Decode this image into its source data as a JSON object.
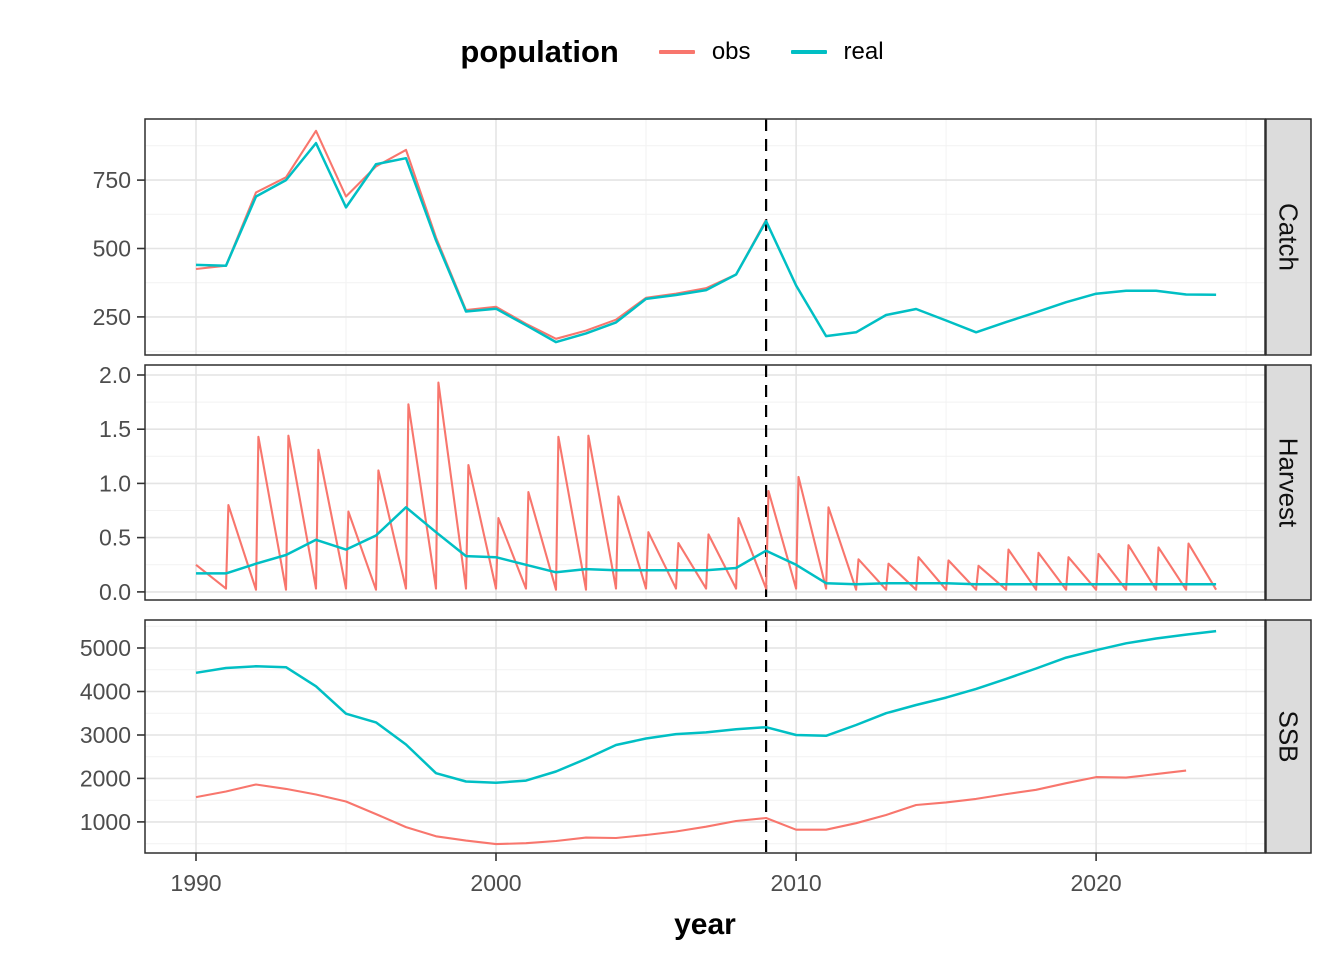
{
  "legend": {
    "title": "population",
    "items": [
      {
        "label": "obs",
        "color": "#F8766D"
      },
      {
        "label": "real",
        "color": "#00BFC4"
      }
    ]
  },
  "x_axis": {
    "title": "year",
    "ticks": [
      1990,
      2000,
      2010,
      2020
    ],
    "minor": [
      1995,
      2005,
      2015,
      2025
    ],
    "domain": [
      1988.3,
      2025.63
    ]
  },
  "reference_line": {
    "x": 2009,
    "style": "dashed",
    "color": "#000000"
  },
  "colors": {
    "obs": "#F8766D",
    "real": "#00BFC4",
    "grid_major": "#E4E4E4",
    "grid_minor": "#F2F2F2",
    "panel_border": "#2F2F2F",
    "tick_mark": "#333333",
    "tick_label": "#4D4D4D",
    "strip_fill": "#DCDCDC",
    "strip_text": "#111111",
    "background": "#FFFFFF"
  },
  "chart_data": [
    {
      "type": "line",
      "facet": "Catch",
      "grid": true,
      "legend_position": "top",
      "y_domain": [
        111,
        973
      ],
      "y_ticks": [
        {
          "v": 250,
          "label": "250"
        },
        {
          "v": 500,
          "label": "500"
        },
        {
          "v": 750,
          "label": "750"
        }
      ],
      "y_minor": [
        125,
        375,
        625,
        875
      ],
      "series": [
        {
          "name": "obs",
          "x_start": 1990,
          "values": [
            425,
            437,
            705,
            760,
            930,
            690,
            800,
            860,
            540,
            275,
            287,
            225,
            170,
            200,
            240,
            320,
            335,
            355,
            405,
            605
          ]
        },
        {
          "name": "real",
          "x_start": 1990,
          "values": [
            440,
            437,
            690,
            750,
            885,
            650,
            808,
            830,
            530,
            270,
            280,
            220,
            158,
            190,
            230,
            316,
            330,
            348,
            405,
            600,
            365,
            180,
            194,
            257,
            279,
            237,
            194,
            231,
            267,
            304,
            335,
            346,
            346,
            332,
            331
          ]
        }
      ]
    },
    {
      "type": "line",
      "facet": "Harvest",
      "grid": true,
      "y_domain": [
        -0.075,
        2.092
      ],
      "y_ticks": [
        {
          "v": 0,
          "label": "0.0"
        },
        {
          "v": 0.5,
          "label": "0.5"
        },
        {
          "v": 1,
          "label": "1.0"
        },
        {
          "v": 1.5,
          "label": "1.5"
        },
        {
          "v": 2,
          "label": "2.0"
        }
      ],
      "y_minor": [
        0.25,
        0.75,
        1.25,
        1.75
      ],
      "series": [
        {
          "name": "obs",
          "points": [
            [
              1990,
              0.25
            ],
            [
              1991,
              0.03
            ],
            [
              1991.08,
              0.8
            ],
            [
              1992,
              0.02
            ],
            [
              1992.08,
              1.43
            ],
            [
              1993,
              0.02
            ],
            [
              1993.08,
              1.44
            ],
            [
              1994,
              0.03
            ],
            [
              1994.08,
              1.31
            ],
            [
              1995,
              0.03
            ],
            [
              1995.08,
              0.74
            ],
            [
              1996,
              0.02
            ],
            [
              1996.08,
              1.12
            ],
            [
              1997,
              0.03
            ],
            [
              1997.08,
              1.73
            ],
            [
              1998,
              0.03
            ],
            [
              1998.08,
              1.93
            ],
            [
              1999,
              0.03
            ],
            [
              1999.08,
              1.17
            ],
            [
              2000,
              0.03
            ],
            [
              2000.08,
              0.68
            ],
            [
              2001,
              0.03
            ],
            [
              2001.08,
              0.92
            ],
            [
              2002,
              0.02
            ],
            [
              2002.08,
              1.43
            ],
            [
              2003,
              0.02
            ],
            [
              2003.08,
              1.44
            ],
            [
              2004,
              0.03
            ],
            [
              2004.08,
              0.88
            ],
            [
              2005,
              0.03
            ],
            [
              2005.08,
              0.55
            ],
            [
              2006,
              0.03
            ],
            [
              2006.08,
              0.45
            ],
            [
              2007,
              0.03
            ],
            [
              2007.08,
              0.53
            ],
            [
              2008,
              0.03
            ],
            [
              2008.08,
              0.68
            ],
            [
              2009,
              0.03
            ],
            [
              2009.08,
              0.93
            ],
            [
              2010,
              0.03
            ],
            [
              2010.08,
              1.06
            ],
            [
              2011,
              0.03
            ],
            [
              2011.08,
              0.78
            ],
            [
              2012,
              0.02
            ],
            [
              2012.08,
              0.3
            ],
            [
              2013,
              0.02
            ],
            [
              2013.08,
              0.26
            ],
            [
              2014,
              0.02
            ],
            [
              2014.08,
              0.32
            ],
            [
              2015,
              0.02
            ],
            [
              2015.08,
              0.29
            ],
            [
              2016,
              0.02
            ],
            [
              2016.08,
              0.24
            ],
            [
              2017,
              0.02
            ],
            [
              2017.08,
              0.39
            ],
            [
              2018,
              0.02
            ],
            [
              2018.08,
              0.36
            ],
            [
              2019,
              0.02
            ],
            [
              2019.08,
              0.32
            ],
            [
              2020,
              0.02
            ],
            [
              2020.08,
              0.35
            ],
            [
              2021,
              0.02
            ],
            [
              2021.08,
              0.43
            ],
            [
              2022,
              0.02
            ],
            [
              2022.08,
              0.41
            ],
            [
              2023,
              0.02
            ],
            [
              2023.08,
              0.445
            ],
            [
              2024,
              0.02
            ]
          ]
        },
        {
          "name": "real",
          "x_start": 1990,
          "values": [
            0.17,
            0.17,
            0.26,
            0.34,
            0.48,
            0.39,
            0.52,
            0.78,
            0.55,
            0.33,
            0.32,
            0.25,
            0.18,
            0.21,
            0.2,
            0.2,
            0.2,
            0.2,
            0.22,
            0.38,
            0.25,
            0.08,
            0.07,
            0.08,
            0.08,
            0.08,
            0.07,
            0.07,
            0.07,
            0.07,
            0.07,
            0.07,
            0.07,
            0.07,
            0.07
          ]
        }
      ]
    },
    {
      "type": "line",
      "facet": "SSB",
      "grid": true,
      "y_domain": [
        285,
        5645
      ],
      "y_ticks": [
        {
          "v": 1000,
          "label": "1000"
        },
        {
          "v": 2000,
          "label": "2000"
        },
        {
          "v": 3000,
          "label": "3000"
        },
        {
          "v": 4000,
          "label": "4000"
        },
        {
          "v": 5000,
          "label": "5000"
        }
      ],
      "y_minor": [
        500,
        1500,
        2500,
        3500,
        4500,
        5500
      ],
      "series": [
        {
          "name": "obs",
          "x_start": 1990,
          "values": [
            1570,
            1700,
            1860,
            1760,
            1630,
            1470,
            1180,
            880,
            670,
            570,
            490,
            510,
            560,
            640,
            630,
            700,
            780,
            890,
            1020,
            1090,
            820,
            820,
            970,
            1160,
            1390,
            1450,
            1530,
            1640,
            1740,
            1890,
            2030,
            2020,
            2100,
            2180
          ]
        },
        {
          "name": "real",
          "x_start": 1990,
          "values": [
            4430,
            4540,
            4580,
            4560,
            4120,
            3490,
            3290,
            2780,
            2120,
            1930,
            1900,
            1950,
            2160,
            2450,
            2770,
            2920,
            3020,
            3060,
            3130,
            3180,
            3000,
            2980,
            3230,
            3500,
            3690,
            3860,
            4060,
            4290,
            4530,
            4780,
            4950,
            5110,
            5220,
            5310,
            5390
          ]
        }
      ]
    }
  ]
}
